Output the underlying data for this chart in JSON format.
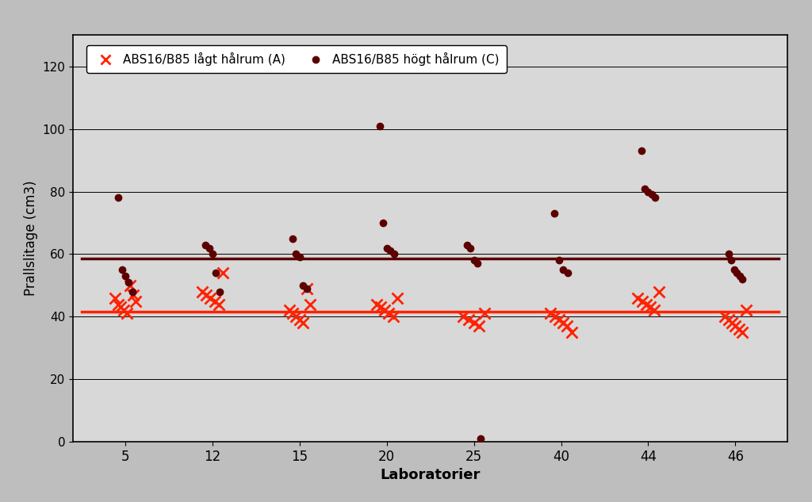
{
  "labs": [
    5,
    12,
    15,
    20,
    25,
    40,
    44,
    46
  ],
  "series_A": {
    "label": "ABS16/B85 lågt hålrum (A)",
    "color": "#FF2200",
    "data": {
      "5": [
        46,
        44,
        43,
        42,
        41,
        50,
        47,
        45
      ],
      "12": [
        48,
        47,
        46,
        45,
        44,
        54
      ],
      "15": [
        42,
        41,
        40,
        39,
        38,
        49,
        44
      ],
      "20": [
        44,
        43,
        42,
        41,
        40,
        46
      ],
      "25": [
        40,
        39,
        38,
        37,
        41
      ],
      "40": [
        41,
        40,
        39,
        38,
        37,
        35
      ],
      "44": [
        46,
        45,
        44,
        43,
        42,
        48
      ],
      "46": [
        40,
        39,
        38,
        37,
        36,
        35,
        42
      ]
    },
    "mean_line": 41.5
  },
  "series_C": {
    "label": "ABS16/B85 högt hålrum (C)",
    "color": "#5C0000",
    "data": {
      "5": [
        78,
        55,
        53,
        51,
        48
      ],
      "12": [
        63,
        62,
        60,
        54,
        48
      ],
      "15": [
        65,
        60,
        59,
        50,
        49
      ],
      "20": [
        101,
        70,
        62,
        61,
        60
      ],
      "25": [
        63,
        62,
        58,
        57,
        1
      ],
      "40": [
        73,
        58,
        55,
        54
      ],
      "44": [
        93,
        81,
        80,
        79,
        78
      ],
      "46": [
        60,
        58,
        55,
        54,
        53,
        52
      ]
    },
    "mean_line": 58.5
  },
  "xlabel": "Laboratorier",
  "ylabel": "Prallslitage (cm3)",
  "ylim": [
    0,
    130
  ],
  "yticks": [
    0,
    20,
    40,
    60,
    80,
    100,
    120
  ],
  "fig_bg_color": "#BEBEBE",
  "plot_bg_color": "#D8D8D8"
}
